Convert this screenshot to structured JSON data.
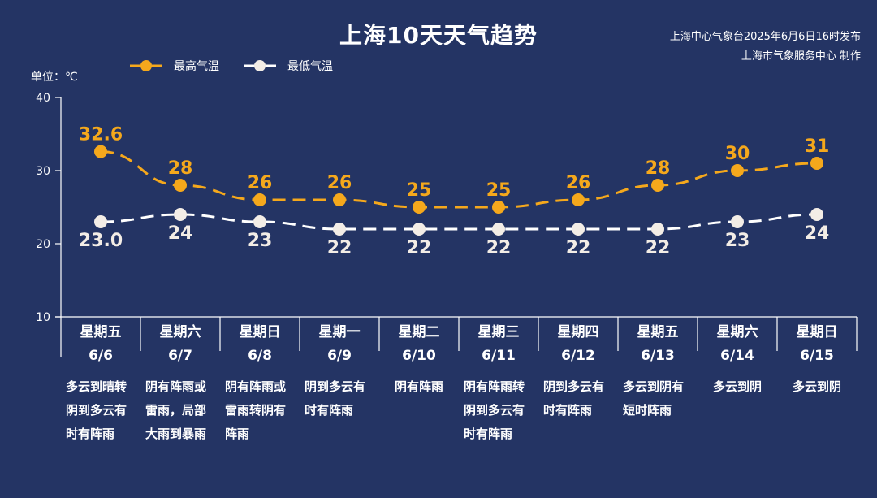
{
  "title": "上海10天天气趋势",
  "publisher": {
    "line1": "上海中心气象台2025年6月6日16时发布",
    "line2": "上海市气象服务中心 制作"
  },
  "unit_label": "单位：℃",
  "legend": {
    "high": "最高气温",
    "low": "最低气温"
  },
  "colors": {
    "background": "#243464",
    "high": "#F5A81C",
    "low": "#FFFFFF",
    "low_marker": "#F3EDE6",
    "axis": "#FFFFFF"
  },
  "chart_data": {
    "type": "line",
    "title": "上海10天天气趋势",
    "xlabel": "",
    "ylabel": "单位：℃",
    "ylim": [
      10,
      40
    ],
    "yticks": [
      10,
      20,
      30,
      40
    ],
    "grid": false,
    "legend_position": "top-left",
    "categories": [
      "6/6",
      "6/7",
      "6/8",
      "6/9",
      "6/10",
      "6/11",
      "6/12",
      "6/13",
      "6/14",
      "6/15"
    ],
    "weekdays": [
      "星期五",
      "星期六",
      "星期日",
      "星期一",
      "星期二",
      "星期三",
      "星期四",
      "星期五",
      "星期六",
      "星期日"
    ],
    "series": [
      {
        "name": "最高气温",
        "values": [
          32.6,
          28,
          26,
          26,
          25,
          25,
          26,
          28,
          30,
          31
        ],
        "labels": [
          "32.6",
          "28",
          "26",
          "26",
          "25",
          "25",
          "26",
          "28",
          "30",
          "31"
        ]
      },
      {
        "name": "最低气温",
        "values": [
          23.0,
          24,
          23,
          22,
          22,
          22,
          22,
          22,
          23,
          24
        ],
        "labels": [
          "23.0",
          "24",
          "23",
          "22",
          "22",
          "22",
          "22",
          "22",
          "23",
          "24"
        ]
      }
    ],
    "weather": [
      "多云到晴转阴到多云有时有阵雨",
      "阴有阵雨或雷雨，局部大雨到暴雨",
      "阴有阵雨或雷雨转阴有阵雨",
      "阴到多云有时有阵雨",
      "阴有阵雨",
      "阴有阵雨转阴到多云有时有阵雨",
      "阴到多云有时有阵雨",
      "多云到阴有短时阵雨",
      "多云到阴",
      "多云到阴"
    ]
  },
  "weather_lines": [
    [
      "多云到晴转",
      "阴到多云有",
      "时有阵雨"
    ],
    [
      "阴有阵雨或",
      "雷雨，局部",
      "大雨到暴雨"
    ],
    [
      "阴有阵雨或",
      "雷雨转阴有",
      "阵雨"
    ],
    [
      "阴到多云有",
      "时有阵雨"
    ],
    [
      "阴有阵雨"
    ],
    [
      "阴有阵雨转",
      "阴到多云有",
      "时有阵雨"
    ],
    [
      "阴到多云有",
      "时有阵雨"
    ],
    [
      "多云到阴有",
      "短时阵雨"
    ],
    [
      "多云到阴"
    ],
    [
      "多云到阴"
    ]
  ]
}
